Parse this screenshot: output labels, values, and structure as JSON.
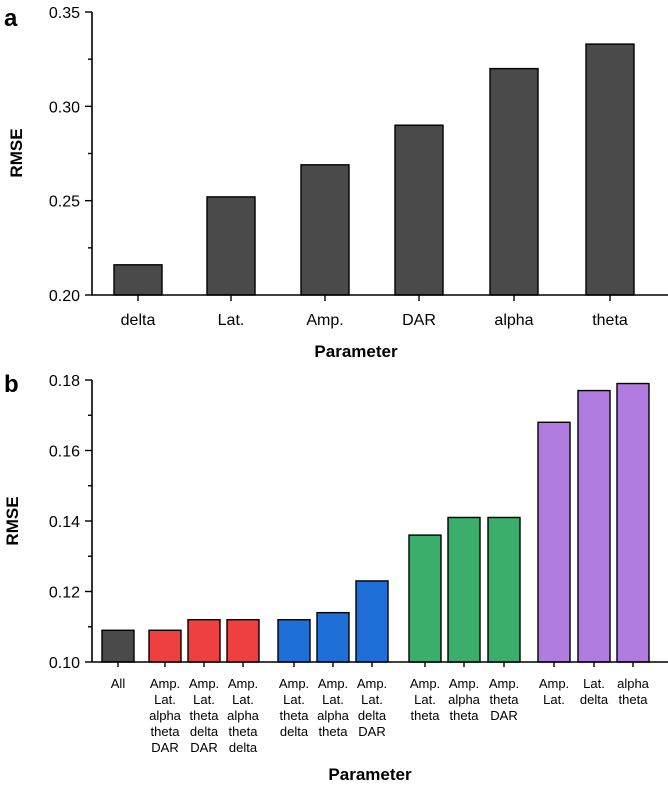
{
  "chart_data": [
    {
      "panel": "a",
      "type": "bar",
      "categories": [
        "delta",
        "Lat.",
        "Amp.",
        "DAR",
        "alpha",
        "theta"
      ],
      "values": [
        0.216,
        0.252,
        0.269,
        0.29,
        0.32,
        0.333
      ],
      "xlabel": "Parameter",
      "ylabel": "RMSE",
      "ylim": [
        0.2,
        0.35
      ],
      "yticks": [
        "0.20",
        "0.25",
        "0.30",
        "0.35"
      ],
      "bar_color": "#4a4a4a"
    },
    {
      "panel": "b",
      "type": "bar",
      "categories": [
        [
          "All"
        ],
        [
          "Amp.",
          "Lat.",
          "alpha",
          "theta",
          "DAR"
        ],
        [
          "Amp.",
          "Lat.",
          "theta",
          "delta",
          "DAR"
        ],
        [
          "Amp.",
          "Lat.",
          "alpha",
          "theta",
          "delta"
        ],
        [
          "Amp.",
          "Lat.",
          "theta",
          "delta"
        ],
        [
          "Amp.",
          "Lat.",
          "alpha",
          "theta"
        ],
        [
          "Amp.",
          "Lat.",
          "delta",
          "DAR"
        ],
        [
          "Amp.",
          "Lat.",
          "theta"
        ],
        [
          "Amp.",
          "alpha",
          "theta"
        ],
        [
          "Amp.",
          "theta",
          "DAR"
        ],
        [
          "Amp.",
          "Lat."
        ],
        [
          "Lat.",
          "delta"
        ],
        [
          "alpha",
          "theta"
        ]
      ],
      "values": [
        0.109,
        0.109,
        0.112,
        0.112,
        0.112,
        0.114,
        0.123,
        0.136,
        0.141,
        0.141,
        0.168,
        0.177,
        0.179
      ],
      "groups": [
        0,
        1,
        1,
        1,
        2,
        2,
        2,
        3,
        3,
        3,
        4,
        4,
        4
      ],
      "group_colors": [
        "#4a4a4a",
        "#ee4040",
        "#1f6fd8",
        "#3aae6a",
        "#b07ce0"
      ],
      "xlabel": "Parameter",
      "ylabel": "RMSE",
      "ylim": [
        0.1,
        0.18
      ],
      "yticks": [
        "0.10",
        "0.12",
        "0.14",
        "0.16",
        "0.18"
      ]
    }
  ]
}
